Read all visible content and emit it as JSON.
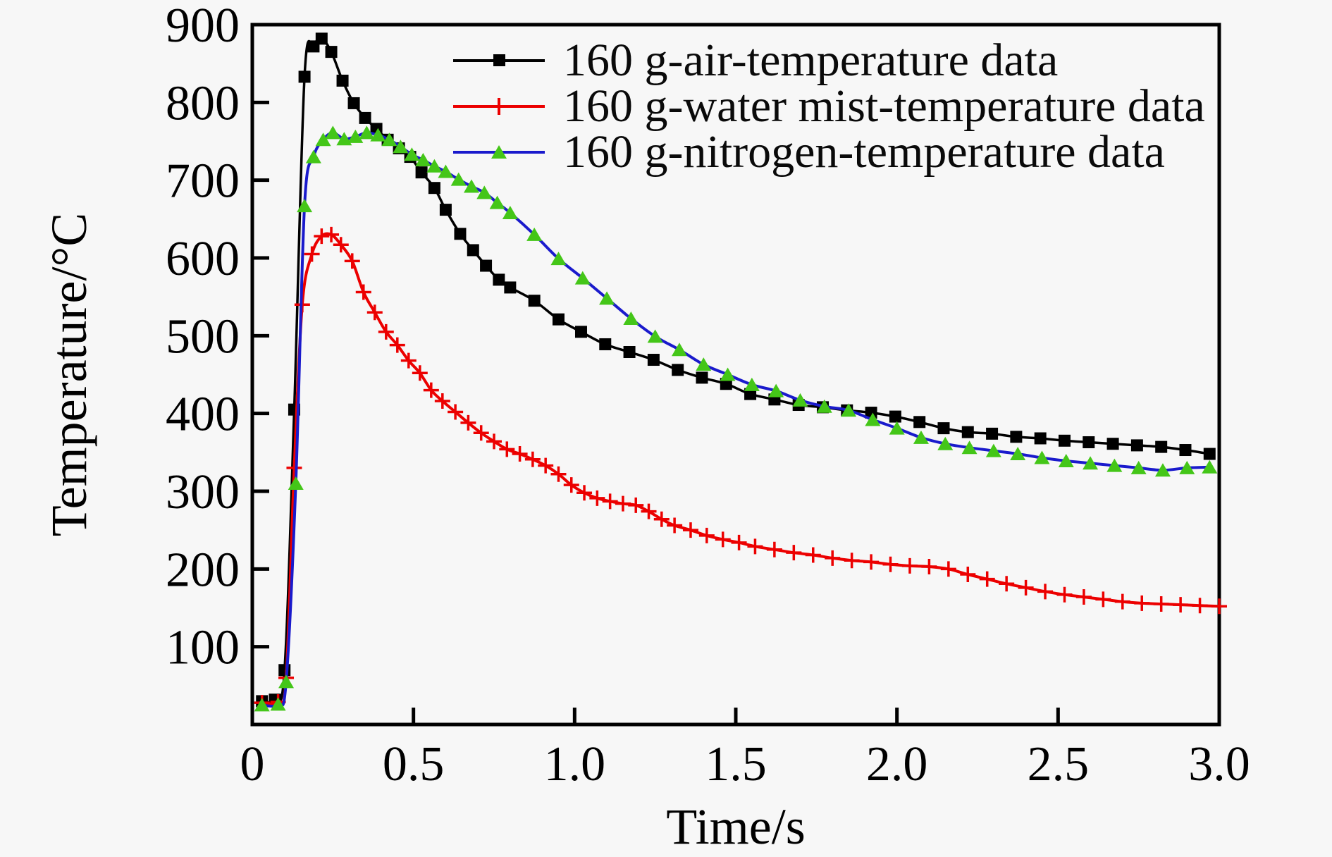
{
  "figure": {
    "background": "#f7f7f7",
    "frame_color": "#000000"
  },
  "chart_data": {
    "type": "line",
    "title": "",
    "xlabel": "Time/s",
    "ylabel": "Temperature/°C",
    "xlim": [
      0,
      3.0
    ],
    "ylim": [
      0,
      900
    ],
    "grid": false,
    "legend_position": "top-left-inside",
    "x_ticks": [
      {
        "v": 0,
        "label": "0"
      },
      {
        "v": 0.5,
        "label": "0.5"
      },
      {
        "v": 1.0,
        "label": "1.0"
      },
      {
        "v": 1.5,
        "label": "1.5"
      },
      {
        "v": 2.0,
        "label": "2.0"
      },
      {
        "v": 2.5,
        "label": "2.5"
      },
      {
        "v": 3.0,
        "label": "3.0"
      }
    ],
    "y_ticks": [
      {
        "v": 100,
        "label": "100"
      },
      {
        "v": 200,
        "label": "200"
      },
      {
        "v": 300,
        "label": "300"
      },
      {
        "v": 400,
        "label": "400"
      },
      {
        "v": 500,
        "label": "500"
      },
      {
        "v": 600,
        "label": "600"
      },
      {
        "v": 700,
        "label": "700"
      },
      {
        "v": 800,
        "label": "800"
      },
      {
        "v": 900,
        "label": "900"
      }
    ],
    "series": [
      {
        "name": "160 g-air-temperature data",
        "color": "#000000",
        "marker": "square",
        "marker_color": "#000000",
        "line_width": 3.5,
        "points": [
          [
            0.03,
            30
          ],
          [
            0.07,
            32
          ],
          [
            0.1,
            70
          ],
          [
            0.13,
            405
          ],
          [
            0.162,
            833
          ],
          [
            0.19,
            872
          ],
          [
            0.215,
            882
          ],
          [
            0.245,
            865
          ],
          [
            0.28,
            828
          ],
          [
            0.315,
            799
          ],
          [
            0.35,
            780
          ],
          [
            0.385,
            766
          ],
          [
            0.42,
            752
          ],
          [
            0.455,
            741
          ],
          [
            0.49,
            730
          ],
          [
            0.525,
            710
          ],
          [
            0.565,
            690
          ],
          [
            0.6,
            662
          ],
          [
            0.645,
            631
          ],
          [
            0.685,
            610
          ],
          [
            0.725,
            590
          ],
          [
            0.765,
            572
          ],
          [
            0.8,
            562
          ],
          [
            0.875,
            545
          ],
          [
            0.95,
            521
          ],
          [
            1.02,
            505
          ],
          [
            1.095,
            489
          ],
          [
            1.17,
            479
          ],
          [
            1.245,
            469
          ],
          [
            1.32,
            456
          ],
          [
            1.395,
            446
          ],
          [
            1.47,
            438
          ],
          [
            1.545,
            425
          ],
          [
            1.62,
            418
          ],
          [
            1.695,
            411
          ],
          [
            1.77,
            408
          ],
          [
            1.845,
            404
          ],
          [
            1.92,
            401
          ],
          [
            1.995,
            396
          ],
          [
            2.07,
            389
          ],
          [
            2.145,
            381
          ],
          [
            2.22,
            376
          ],
          [
            2.295,
            374
          ],
          [
            2.37,
            370
          ],
          [
            2.445,
            368
          ],
          [
            2.52,
            365
          ],
          [
            2.595,
            363
          ],
          [
            2.67,
            361
          ],
          [
            2.745,
            359
          ],
          [
            2.82,
            357
          ],
          [
            2.895,
            353
          ],
          [
            2.97,
            348
          ]
        ]
      },
      {
        "name": "160 g-water mist-temperature data",
        "color": "#ec0000",
        "marker": "plus",
        "marker_color": "#ec0000",
        "line_width": 4,
        "points": [
          [
            0.03,
            28
          ],
          [
            0.08,
            29
          ],
          [
            0.105,
            60
          ],
          [
            0.13,
            330
          ],
          [
            0.155,
            540
          ],
          [
            0.185,
            605
          ],
          [
            0.215,
            628
          ],
          [
            0.245,
            630
          ],
          [
            0.275,
            617
          ],
          [
            0.31,
            596
          ],
          [
            0.345,
            556
          ],
          [
            0.38,
            530
          ],
          [
            0.415,
            505
          ],
          [
            0.45,
            488
          ],
          [
            0.485,
            468
          ],
          [
            0.52,
            452
          ],
          [
            0.555,
            430
          ],
          [
            0.59,
            416
          ],
          [
            0.63,
            402
          ],
          [
            0.67,
            388
          ],
          [
            0.71,
            375
          ],
          [
            0.75,
            364
          ],
          [
            0.79,
            354
          ],
          [
            0.83,
            348
          ],
          [
            0.87,
            341
          ],
          [
            0.91,
            333
          ],
          [
            0.95,
            322
          ],
          [
            0.99,
            308
          ],
          [
            1.03,
            298
          ],
          [
            1.07,
            291
          ],
          [
            1.11,
            287
          ],
          [
            1.15,
            284
          ],
          [
            1.19,
            282
          ],
          [
            1.23,
            274
          ],
          [
            1.27,
            264
          ],
          [
            1.31,
            256
          ],
          [
            1.36,
            250
          ],
          [
            1.41,
            243
          ],
          [
            1.46,
            238
          ],
          [
            1.51,
            234
          ],
          [
            1.56,
            229
          ],
          [
            1.62,
            225
          ],
          [
            1.68,
            221
          ],
          [
            1.74,
            218
          ],
          [
            1.8,
            214
          ],
          [
            1.86,
            211
          ],
          [
            1.92,
            209
          ],
          [
            1.98,
            206
          ],
          [
            2.04,
            204
          ],
          [
            2.1,
            203
          ],
          [
            2.16,
            200
          ],
          [
            2.22,
            193
          ],
          [
            2.28,
            187
          ],
          [
            2.34,
            181
          ],
          [
            2.4,
            176
          ],
          [
            2.46,
            171
          ],
          [
            2.52,
            167
          ],
          [
            2.58,
            164
          ],
          [
            2.64,
            161
          ],
          [
            2.7,
            158
          ],
          [
            2.76,
            156
          ],
          [
            2.82,
            155
          ],
          [
            2.88,
            154
          ],
          [
            2.94,
            153
          ],
          [
            3.0,
            152
          ]
        ]
      },
      {
        "name": "160 g-nitrogen-temperature data",
        "color": "#1a1acc",
        "marker": "triangle",
        "marker_color": "#44c618",
        "line_width": 4,
        "points": [
          [
            0.03,
            25
          ],
          [
            0.08,
            26
          ],
          [
            0.105,
            55
          ],
          [
            0.135,
            310
          ],
          [
            0.162,
            667
          ],
          [
            0.19,
            730
          ],
          [
            0.22,
            752
          ],
          [
            0.25,
            761
          ],
          [
            0.285,
            753
          ],
          [
            0.32,
            756
          ],
          [
            0.355,
            761
          ],
          [
            0.39,
            758
          ],
          [
            0.425,
            752
          ],
          [
            0.46,
            743
          ],
          [
            0.495,
            733
          ],
          [
            0.53,
            726
          ],
          [
            0.565,
            718
          ],
          [
            0.6,
            711
          ],
          [
            0.64,
            701
          ],
          [
            0.68,
            692
          ],
          [
            0.72,
            684
          ],
          [
            0.76,
            671
          ],
          [
            0.8,
            658
          ],
          [
            0.875,
            630
          ],
          [
            0.95,
            599
          ],
          [
            1.025,
            574
          ],
          [
            1.1,
            548
          ],
          [
            1.175,
            522
          ],
          [
            1.25,
            499
          ],
          [
            1.325,
            482
          ],
          [
            1.4,
            463
          ],
          [
            1.475,
            450
          ],
          [
            1.55,
            437
          ],
          [
            1.625,
            429
          ],
          [
            1.7,
            417
          ],
          [
            1.775,
            409
          ],
          [
            1.85,
            404
          ],
          [
            1.925,
            392
          ],
          [
            2.0,
            381
          ],
          [
            2.075,
            369
          ],
          [
            2.15,
            361
          ],
          [
            2.225,
            356
          ],
          [
            2.3,
            352
          ],
          [
            2.375,
            348
          ],
          [
            2.45,
            343
          ],
          [
            2.525,
            339
          ],
          [
            2.6,
            336
          ],
          [
            2.675,
            333
          ],
          [
            2.75,
            330
          ],
          [
            2.825,
            327
          ],
          [
            2.9,
            330
          ],
          [
            2.97,
            331
          ]
        ]
      }
    ]
  },
  "legend": {
    "items": [
      {
        "label": "160 g-air-temperature data"
      },
      {
        "label": "160 g-water mist-temperature data"
      },
      {
        "label": "160 g-nitrogen-temperature data"
      }
    ]
  }
}
